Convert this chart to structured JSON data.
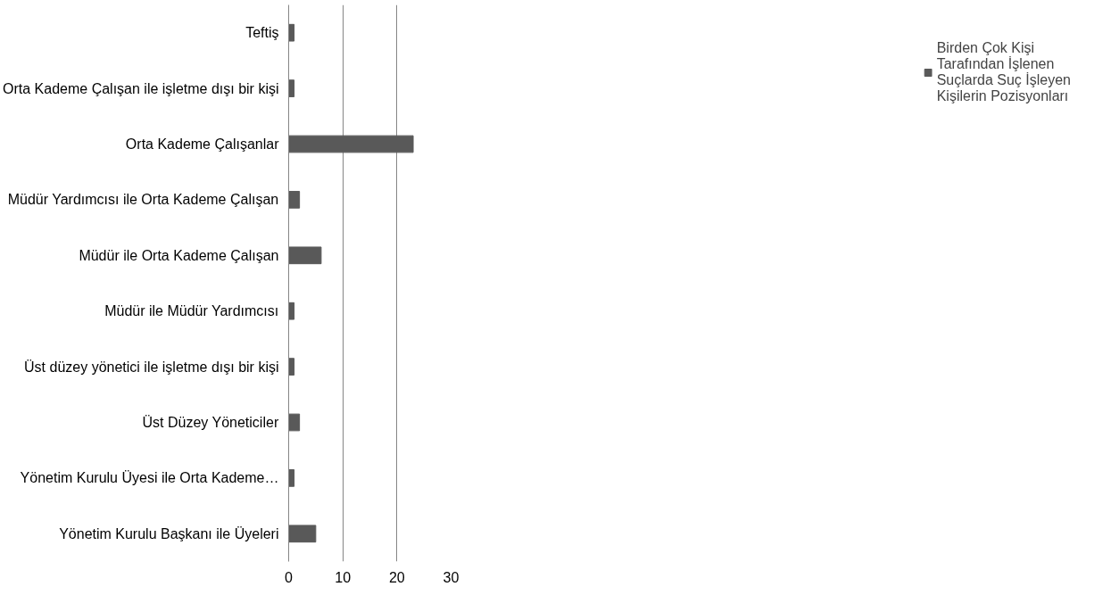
{
  "chart_data": {
    "type": "bar",
    "orientation": "horizontal",
    "categories": [
      "Teftiş",
      "Orta Kademe Çalışan ile işletme dışı bir kişi",
      "Orta Kademe Çalışanlar",
      "Müdür Yardımcısı ile Orta Kademe Çalışan",
      "Müdür ile Orta Kademe Çalışan",
      "Müdür ile Müdür Yardımcısı",
      "Üst düzey yönetici ile işletme dışı bir kişi",
      "Üst Düzey Yöneticiler",
      "Yönetim Kurulu Üyesi ile Orta Kademe…",
      "Yönetim Kurulu Başkanı ile Üyeleri"
    ],
    "series": [
      {
        "name": "Birden Çok Kişi Tarafından İşlenen Suçlarda Suç İşleyen Kişilerin Pozisyonları",
        "color": "#595959",
        "values": [
          1,
          1,
          23,
          2,
          6,
          1,
          1,
          2,
          1,
          5
        ]
      }
    ],
    "xlim": [
      0,
      30
    ],
    "xticks": [
      0,
      10,
      20,
      30
    ],
    "grid": "x",
    "legend": "right"
  }
}
